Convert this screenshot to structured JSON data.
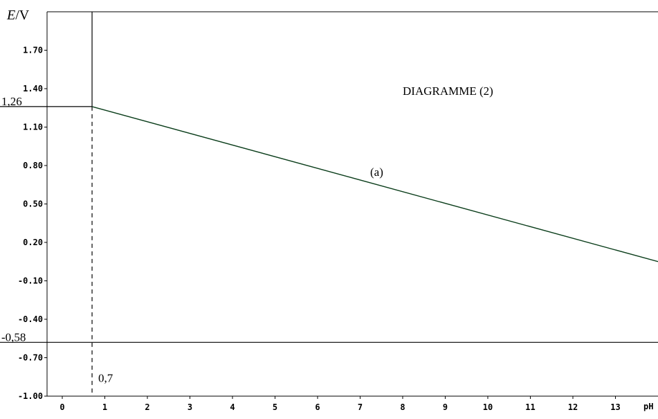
{
  "chart_data": {
    "type": "line",
    "title": "DIAGRAMME (2)",
    "ylabel_italic": "E",
    "ylabel_unit": "/V",
    "xlabel": "pH",
    "xlim": [
      0,
      14
    ],
    "ylim": [
      -1.0,
      2.0
    ],
    "x_ticks": [
      "0",
      "1",
      "2",
      "3",
      "4",
      "5",
      "6",
      "7",
      "8",
      "9",
      "10",
      "11",
      "12",
      "13"
    ],
    "x_tick_values": [
      0,
      1,
      2,
      3,
      4,
      5,
      6,
      7,
      8,
      9,
      10,
      11,
      12,
      13
    ],
    "y_ticks": [
      "1.70",
      "1.40",
      "1.10",
      "0.80",
      "0.50",
      "0.20",
      "-0.10",
      "-0.40",
      "-0.70",
      "-1.00"
    ],
    "y_tick_values": [
      1.7,
      1.4,
      1.1,
      0.8,
      0.5,
      0.2,
      -0.1,
      -0.4,
      -0.7,
      -1.0
    ],
    "series": [
      {
        "name": "(a)",
        "x": [
          0.7,
          14.0
        ],
        "y": [
          1.26,
          0.05
        ]
      }
    ],
    "reference_lines": {
      "horizontal": [
        {
          "y": 1.26,
          "label": "1,26",
          "x_range": [
            0,
            0.7
          ]
        },
        {
          "y": -0.58,
          "label": "-0,58",
          "x_range": [
            0,
            14
          ]
        }
      ],
      "vertical": [
        {
          "x": 0.7,
          "label": "0,7",
          "solid_y_range": [
            1.26,
            2.0
          ],
          "dashed_y_range": [
            -1.0,
            1.26
          ]
        }
      ]
    },
    "grid": false,
    "colors": {
      "axis": "#000000",
      "series": "#0a3d1a"
    }
  }
}
